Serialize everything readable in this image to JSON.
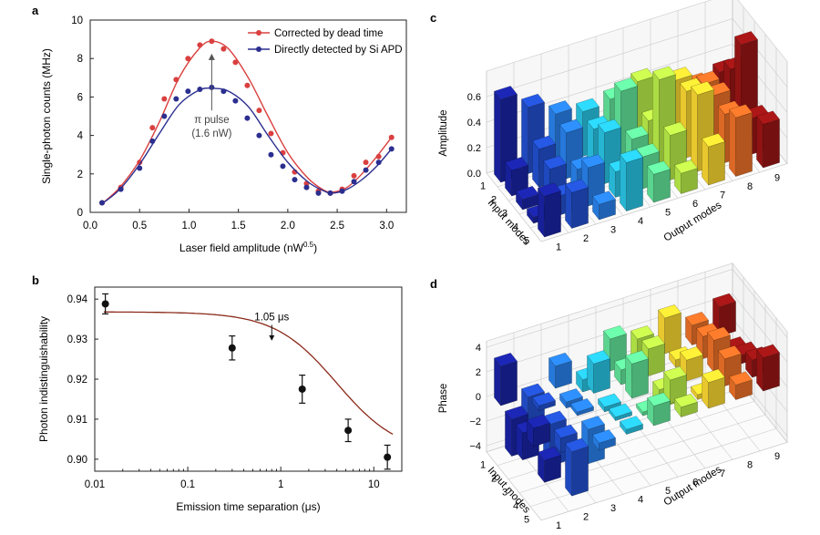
{
  "figure": {
    "panel_labels": [
      "a",
      "b",
      "c",
      "d"
    ]
  },
  "chart_data": [
    {
      "id": "a",
      "type": "line",
      "xlabel": "Laser field amplitude (nW",
      "xlabel_sup": "0.5",
      "xlabel_end": ")",
      "ylabel": "Single-photon counts (MHz)",
      "xlim": [
        0.0,
        3.2
      ],
      "ylim": [
        0,
        10
      ],
      "xticks": [
        0.0,
        0.5,
        1.0,
        1.5,
        2.0,
        2.5,
        3.0
      ],
      "xtick_labels": [
        "0.0",
        "0.5",
        "1.0",
        "1.5",
        "2.0",
        "2.5",
        "3.0"
      ],
      "yticks": [
        0,
        2,
        4,
        6,
        8,
        10
      ],
      "ytick_labels": [
        "0",
        "2",
        "4",
        "6",
        "8",
        "10"
      ],
      "legend_position": "top-right",
      "annotation": {
        "text_line1": "π pulse",
        "text_line2": "(1.6 nW)",
        "x": 1.23,
        "y_from": 5.3,
        "y_to": 8.25
      },
      "series": [
        {
          "name": "Corrected by dead time",
          "color": "#d9403f",
          "x": [
            0.12,
            0.31,
            0.5,
            0.63,
            0.75,
            0.87,
            0.99,
            1.11,
            1.23,
            1.35,
            1.47,
            1.59,
            1.71,
            1.83,
            1.95,
            2.07,
            2.19,
            2.31,
            2.43,
            2.55,
            2.67,
            2.79,
            2.92,
            3.05
          ],
          "y": [
            0.5,
            1.3,
            2.6,
            4.4,
            5.9,
            6.9,
            8.0,
            8.7,
            8.9,
            8.5,
            7.8,
            6.6,
            5.3,
            4.1,
            3.1,
            2.1,
            1.5,
            1.1,
            1.0,
            1.2,
            1.9,
            2.6,
            2.9,
            3.9
          ],
          "fit_x": [
            0.12,
            0.3,
            0.5,
            0.7,
            0.9,
            1.1,
            1.23,
            1.4,
            1.6,
            1.8,
            2.0,
            2.2,
            2.35,
            2.45,
            2.6,
            2.75,
            2.9,
            3.05
          ],
          "fit_y": [
            0.45,
            1.3,
            2.7,
            4.7,
            7.0,
            8.5,
            8.9,
            8.5,
            7.0,
            5.0,
            3.1,
            1.8,
            1.2,
            1.05,
            1.3,
            2.0,
            2.9,
            3.9
          ]
        },
        {
          "name": "Directly detected by Si APD",
          "color": "#2b2f8f",
          "x": [
            0.12,
            0.31,
            0.5,
            0.63,
            0.75,
            0.87,
            0.99,
            1.11,
            1.23,
            1.35,
            1.47,
            1.59,
            1.71,
            1.83,
            1.95,
            2.07,
            2.19,
            2.31,
            2.43,
            2.55,
            2.67,
            2.79,
            2.92,
            3.05
          ],
          "y": [
            0.5,
            1.2,
            2.3,
            3.7,
            5.0,
            5.9,
            6.3,
            6.4,
            6.5,
            6.3,
            5.8,
            4.9,
            4.0,
            3.0,
            2.4,
            1.7,
            1.3,
            1.0,
            1.0,
            1.1,
            1.6,
            2.2,
            2.6,
            3.3
          ],
          "fit_x": [
            0.12,
            0.3,
            0.5,
            0.7,
            0.9,
            1.1,
            1.23,
            1.4,
            1.6,
            1.8,
            2.0,
            2.2,
            2.35,
            2.45,
            2.6,
            2.75,
            2.9,
            3.05
          ],
          "fit_y": [
            0.45,
            1.2,
            2.5,
            4.1,
            5.6,
            6.35,
            6.45,
            6.3,
            5.5,
            4.0,
            2.6,
            1.6,
            1.15,
            1.0,
            1.2,
            1.7,
            2.4,
            3.3
          ]
        }
      ]
    },
    {
      "id": "b",
      "type": "scatter",
      "xscale": "log",
      "xlabel": "Emission time separation (μs)",
      "ylabel": "Photon indistinguishability",
      "xlim": [
        0.01,
        20
      ],
      "ylim": [
        0.897,
        0.943
      ],
      "xticks": [
        0.01,
        0.1,
        1,
        10
      ],
      "xtick_labels": [
        "0.01",
        "0.1",
        "1",
        "10"
      ],
      "yticks": [
        0.9,
        0.91,
        0.92,
        0.93,
        0.94
      ],
      "ytick_labels": [
        "0.90",
        "0.91",
        "0.92",
        "0.93",
        "0.94"
      ],
      "annotation": {
        "text": "1.05 μs",
        "x": 0.8,
        "y_from": 0.9338,
        "y_to": 0.9296
      },
      "points": [
        {
          "x": 0.013,
          "y": 0.9388,
          "err": 0.0025
        },
        {
          "x": 0.3,
          "y": 0.9278,
          "err": 0.003
        },
        {
          "x": 1.7,
          "y": 0.9175,
          "err": 0.0035
        },
        {
          "x": 5.3,
          "y": 0.9072,
          "err": 0.0028
        },
        {
          "x": 14.0,
          "y": 0.9005,
          "err": 0.003
        }
      ],
      "fit": {
        "color": "#8b2a1a",
        "top": 0.9368,
        "bottom": 0.9012,
        "tau": 4.0
      }
    },
    {
      "id": "c",
      "type": "bar3d",
      "zlabel": "Amplitude",
      "xlabel": "Input modes",
      "ylabel": "Output modes",
      "zlim": [
        0.0,
        0.8
      ],
      "zticks": [
        0.0,
        0.2,
        0.4,
        0.6
      ],
      "ztick_labels": [
        "0.0",
        "0.2",
        "0.4",
        "0.6"
      ],
      "input_labels": [
        "1",
        "2",
        "3",
        "4",
        "5"
      ],
      "output_labels": [
        "1",
        "2",
        "3",
        "4",
        "5",
        "6",
        "7",
        "8",
        "9"
      ],
      "values": [
        [
          0.65,
          0.52,
          0.4,
          0.35,
          0.38,
          0.45,
          0.3,
          0.28,
          0.32
        ],
        [
          0.2,
          0.3,
          0.36,
          0.32,
          0.55,
          0.25,
          0.5,
          0.4,
          0.45
        ],
        [
          0.08,
          0.25,
          0.18,
          0.4,
          0.28,
          0.68,
          0.52,
          0.42,
          0.75
        ],
        [
          0.05,
          0.15,
          0.3,
          0.2,
          0.25,
          0.35,
          0.6,
          0.38,
          0.28
        ],
        [
          0.32,
          0.28,
          0.12,
          0.38,
          0.22,
          0.16,
          0.3,
          0.46,
          0.34
        ]
      ]
    },
    {
      "id": "d",
      "type": "bar3d",
      "zlabel": "Phase",
      "xlabel": "Input modes",
      "ylabel": "Output modes",
      "zlim": [
        -4.5,
        4.5
      ],
      "zticks": [
        -4,
        -2,
        0,
        2,
        4
      ],
      "ztick_labels": [
        "−4",
        "−2",
        "0",
        "2",
        "4"
      ],
      "input_labels": [
        "1",
        "2",
        "3",
        "4",
        "5"
      ],
      "output_labels": [
        "1",
        "2",
        "3",
        "4",
        "5",
        "6",
        "7",
        "8",
        "9"
      ],
      "values": [
        [
          3.2,
          -2.5,
          1.8,
          -1.0,
          2.6,
          1.9,
          2.9,
          1.6,
          2.4
        ],
        [
          -3.0,
          0.4,
          -0.5,
          2.4,
          1.2,
          2.2,
          0.6,
          1.8,
          -0.3
        ],
        [
          -2.2,
          -3.4,
          0.3,
          -0.4,
          2.8,
          -1.5,
          1.7,
          2.6,
          0.7
        ],
        [
          1.5,
          -1.2,
          -2.8,
          0.3,
          -0.3,
          1.9,
          -0.4,
          2.2,
          1.4
        ],
        [
          -1.8,
          -3.6,
          -0.6,
          0.4,
          1.6,
          0.8,
          2.1,
          1.2,
          2.7
        ]
      ]
    }
  ]
}
